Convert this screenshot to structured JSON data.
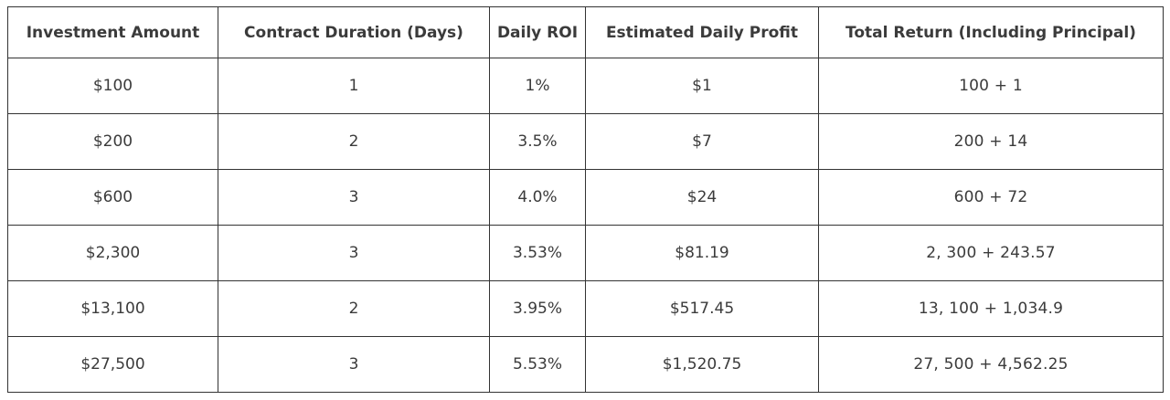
{
  "table": {
    "headers": [
      "Investment Amount",
      "Contract Duration (Days)",
      "Daily ROI",
      "Estimated Daily Profit",
      "Total Return (Including Principal)"
    ],
    "rows": [
      [
        "$100",
        "1",
        "1%",
        "$1",
        "100 + 1"
      ],
      [
        "$200",
        "2",
        "3.5%",
        "$7",
        "200 + 14"
      ],
      [
        "$600",
        "3",
        "4.0%",
        "$24",
        "600 + 72"
      ],
      [
        "$2,300",
        "3",
        "3.53%",
        "$81.19",
        "2, 300 + 243.57"
      ],
      [
        "$13,100",
        "2",
        "3.95%",
        "$517.45",
        "13, 100 + 1,034.9"
      ],
      [
        "$27,500",
        "3",
        "5.53%",
        "$1,520.75",
        "27, 500 + 4,562.25"
      ]
    ]
  },
  "colors": {
    "border": "#333333",
    "text": "#3b3b3b",
    "background": "#ffffff"
  },
  "chart_data": {
    "type": "table",
    "title": "",
    "columns": [
      "Investment Amount",
      "Contract Duration (Days)",
      "Daily ROI",
      "Estimated Daily Profit",
      "Total Return (Including Principal)"
    ],
    "rows": [
      {
        "investment_amount": "$100",
        "contract_duration_days": 1,
        "daily_roi": "1%",
        "estimated_daily_profit": "$1",
        "total_return": "100 + 1"
      },
      {
        "investment_amount": "$200",
        "contract_duration_days": 2,
        "daily_roi": "3.5%",
        "estimated_daily_profit": "$7",
        "total_return": "200 + 14"
      },
      {
        "investment_amount": "$600",
        "contract_duration_days": 3,
        "daily_roi": "4.0%",
        "estimated_daily_profit": "$24",
        "total_return": "600 + 72"
      },
      {
        "investment_amount": "$2,300",
        "contract_duration_days": 3,
        "daily_roi": "3.53%",
        "estimated_daily_profit": "$81.19",
        "total_return": "2, 300 + 243.57"
      },
      {
        "investment_amount": "$13,100",
        "contract_duration_days": 2,
        "daily_roi": "3.95%",
        "estimated_daily_profit": "$517.45",
        "total_return": "13, 100 + 1,034.9"
      },
      {
        "investment_amount": "$27,500",
        "contract_duration_days": 3,
        "daily_roi": "5.53%",
        "estimated_daily_profit": "$1,520.75",
        "total_return": "27, 500 + 4,562.25"
      }
    ]
  }
}
